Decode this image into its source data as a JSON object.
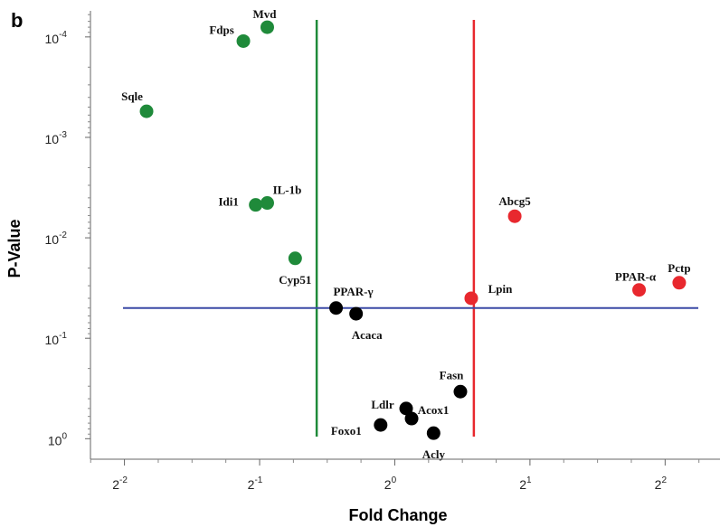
{
  "panel_label": "b",
  "chart_data": {
    "type": "scatter",
    "xlabel": "Fold Change",
    "ylabel": "P-Value",
    "x_scale": "log2",
    "y_scale": "log10",
    "xlim": [
      0.21,
      5.3
    ],
    "ylim": [
      1.6,
      5.5e-05
    ],
    "x_ticks": [
      {
        "value": 0.25,
        "base": "2",
        "exp": "-2"
      },
      {
        "value": 0.5,
        "base": "2",
        "exp": "-1"
      },
      {
        "value": 1,
        "base": "2",
        "exp": "0"
      },
      {
        "value": 2,
        "base": "2",
        "exp": "1"
      },
      {
        "value": 4,
        "base": "2",
        "exp": "2"
      }
    ],
    "y_ticks": [
      {
        "value": 0.0001,
        "base": "10",
        "exp": "-4"
      },
      {
        "value": 0.001,
        "base": "10",
        "exp": "-3"
      },
      {
        "value": 0.01,
        "base": "10",
        "exp": "-2"
      },
      {
        "value": 0.1,
        "base": "10",
        "exp": "-1"
      },
      {
        "value": 1,
        "base": "10",
        "exp": "0"
      }
    ],
    "threshold_lines": [
      {
        "orientation": "vertical",
        "value": 0.67,
        "color": "#1f8a3a"
      },
      {
        "orientation": "vertical",
        "value": 1.5,
        "color": "#e8282e"
      },
      {
        "orientation": "horizontal",
        "value": 0.05,
        "color": "#3b4aa6"
      }
    ],
    "colors": {
      "down": "#1f8a3a",
      "up": "#e8282e",
      "ns": "#000000"
    },
    "points": [
      {
        "name": "Mvd",
        "x": 0.52,
        "y": 8e-05,
        "group": "down"
      },
      {
        "name": "Fdps",
        "x": 0.46,
        "y": 0.00011,
        "group": "down"
      },
      {
        "name": "Sqle",
        "x": 0.28,
        "y": 0.00055,
        "group": "down"
      },
      {
        "name": "IL-1b",
        "x": 0.52,
        "y": 0.0045,
        "group": "down"
      },
      {
        "name": "Idi1",
        "x": 0.49,
        "y": 0.0047,
        "group": "down"
      },
      {
        "name": "Cyp51",
        "x": 0.6,
        "y": 0.016,
        "group": "down"
      },
      {
        "name": "Abcg5",
        "x": 1.85,
        "y": 0.0061,
        "group": "up"
      },
      {
        "name": "PPAR-α",
        "x": 3.5,
        "y": 0.033,
        "group": "up"
      },
      {
        "name": "Pctp",
        "x": 4.3,
        "y": 0.028,
        "group": "up"
      },
      {
        "name": "Lpin",
        "x": 1.48,
        "y": 0.04,
        "group": "up"
      },
      {
        "name": "PPAR-γ",
        "x": 0.74,
        "y": 0.05,
        "group": "ns"
      },
      {
        "name": "Acaca",
        "x": 0.82,
        "y": 0.057,
        "group": "ns"
      },
      {
        "name": "Fasn",
        "x": 1.4,
        "y": 0.34,
        "group": "ns"
      },
      {
        "name": "Ldlr",
        "x": 1.06,
        "y": 0.5,
        "group": "ns"
      },
      {
        "name": "Acox1",
        "x": 1.09,
        "y": 0.63,
        "group": "ns"
      },
      {
        "name": "Foxo1",
        "x": 0.93,
        "y": 0.73,
        "group": "ns"
      },
      {
        "name": "Acly",
        "x": 1.22,
        "y": 0.88,
        "group": "ns"
      }
    ]
  }
}
